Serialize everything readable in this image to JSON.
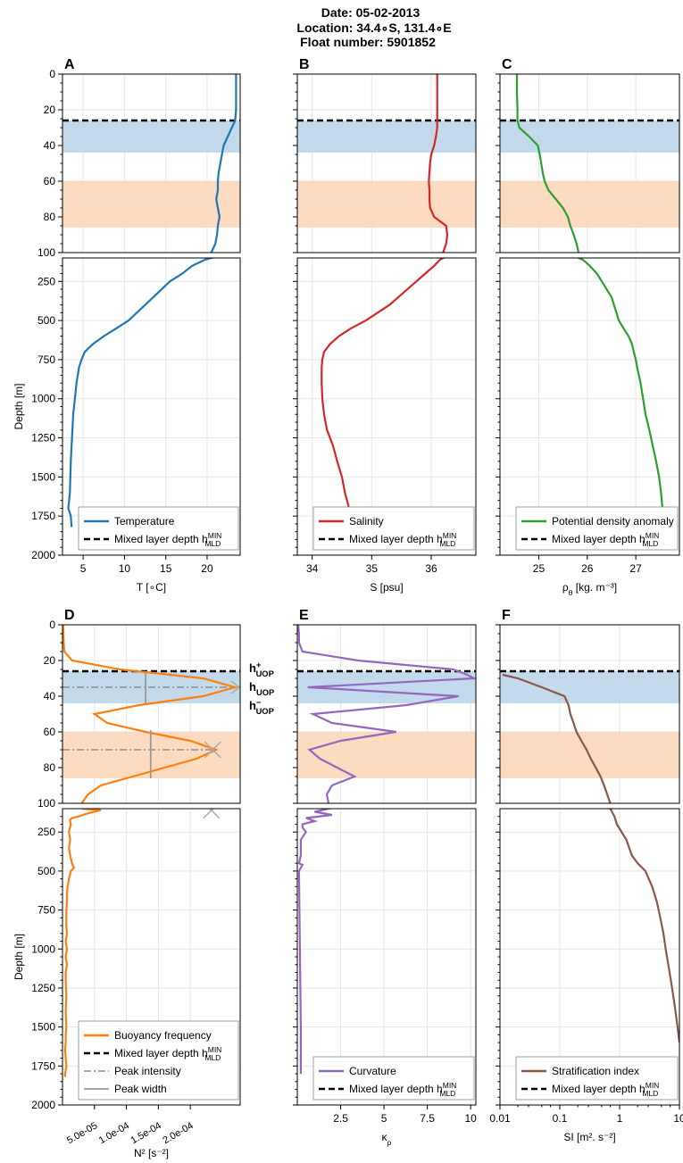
{
  "header": {
    "date": "Date: 05-02-2013",
    "location": "Location: 34.4∘S, 131.4∘E",
    "float": "Float number: 5901852"
  },
  "colors": {
    "temperature": "#1f77b4",
    "salinity": "#d62728",
    "density": "#2ca02c",
    "buoyancy": "#ff7f0e",
    "curvature": "#9467bd",
    "stratification": "#8c564b",
    "mld": "#000000",
    "band_blue": "#b9d3e9",
    "band_orange": "#fbd5b5",
    "peak": "#999999"
  },
  "chart_data": [
    {
      "id": "A",
      "type": "line",
      "panel_label": "A",
      "xlabel": "T [∘C]",
      "ylabel": "Depth [m]",
      "xlim": [
        2.5,
        24
      ],
      "xticks": [
        "5",
        "10",
        "15",
        "20"
      ],
      "xtick_values": [
        5,
        10,
        15,
        20
      ],
      "xscale": "linear",
      "legend": [
        "Temperature",
        "Mixed layer depth h"
      ],
      "series": [
        {
          "name": "Temperature",
          "y": [
            0,
            10,
            20,
            26,
            30,
            35,
            40,
            45,
            50,
            55,
            60,
            65,
            70,
            75,
            80,
            85,
            90,
            95,
            100,
            110,
            130,
            150,
            200,
            250,
            300,
            350,
            400,
            450,
            500,
            550,
            600,
            650,
            700,
            750,
            800,
            900,
            1000,
            1100,
            1200,
            1300,
            1400,
            1500,
            1600,
            1700,
            1750,
            1820
          ],
          "x": [
            23.5,
            23.5,
            23.5,
            23.4,
            23.0,
            22.5,
            22.0,
            21.8,
            21.6,
            21.4,
            21.3,
            21.3,
            21.1,
            21.3,
            21.5,
            21.3,
            21.2,
            21.0,
            20.5,
            19.8,
            19.0,
            18.2,
            17.0,
            15.5,
            14.5,
            13.5,
            12.5,
            11.5,
            10.5,
            9.0,
            7.5,
            6.2,
            5.2,
            4.8,
            4.5,
            4.2,
            4.0,
            3.8,
            3.7,
            3.6,
            3.5,
            3.45,
            3.4,
            3.2,
            3.5,
            3.6
          ]
        }
      ],
      "mld": 26,
      "bands": [
        [
          26,
          44
        ],
        [
          60,
          86
        ]
      ]
    },
    {
      "id": "B",
      "type": "line",
      "panel_label": "B",
      "xlabel": "S [psu]",
      "ylabel": "",
      "xlim": [
        33.75,
        36.75
      ],
      "xticks": [
        "34",
        "35",
        "36"
      ],
      "xtick_values": [
        34,
        35,
        36
      ],
      "xscale": "linear",
      "legend": [
        "Salinity",
        "Mixed layer depth h"
      ],
      "series": [
        {
          "name": "Salinity",
          "y": [
            0,
            10,
            20,
            26,
            30,
            35,
            40,
            45,
            50,
            55,
            60,
            65,
            70,
            75,
            80,
            85,
            90,
            95,
            100,
            110,
            130,
            150,
            200,
            250,
            300,
            350,
            400,
            450,
            500,
            550,
            600,
            650,
            700,
            750,
            800,
            900,
            1000,
            1100,
            1200,
            1300,
            1400,
            1500,
            1600,
            1700,
            1750
          ],
          "x": [
            36.1,
            36.1,
            36.1,
            36.1,
            36.1,
            36.08,
            36.05,
            36.0,
            35.98,
            35.97,
            35.96,
            35.97,
            35.97,
            35.98,
            36.05,
            36.25,
            36.27,
            36.25,
            36.2,
            36.15,
            36.1,
            36.05,
            35.9,
            35.75,
            35.6,
            35.45,
            35.3,
            35.1,
            34.9,
            34.65,
            34.45,
            34.3,
            34.2,
            34.17,
            34.16,
            34.16,
            34.17,
            34.2,
            34.25,
            34.35,
            34.42,
            34.5,
            34.55,
            34.62,
            34.65
          ]
        }
      ],
      "mld": 26,
      "bands": [
        [
          26,
          44
        ],
        [
          60,
          86
        ]
      ]
    },
    {
      "id": "C",
      "type": "line",
      "panel_label": "C",
      "xlabel": "ρθ [kg. m⁻³]",
      "ylabel": "",
      "xlim": [
        24.2,
        27.9
      ],
      "xticks": [
        "25",
        "26",
        "27"
      ],
      "xtick_values": [
        25,
        26,
        27
      ],
      "xscale": "linear",
      "legend": [
        "Potential density anomaly",
        "Mixed layer depth h"
      ],
      "series": [
        {
          "name": "Potential density anomaly",
          "y": [
            0,
            10,
            20,
            26,
            30,
            35,
            40,
            45,
            50,
            55,
            60,
            65,
            70,
            75,
            80,
            85,
            90,
            95,
            100,
            110,
            130,
            150,
            200,
            250,
            300,
            350,
            400,
            450,
            500,
            550,
            600,
            650,
            700,
            750,
            800,
            900,
            1000,
            1100,
            1200,
            1300,
            1400,
            1500,
            1600,
            1700,
            1750
          ],
          "x": [
            24.55,
            24.55,
            24.56,
            24.56,
            24.6,
            24.8,
            24.98,
            25.02,
            25.05,
            25.08,
            25.12,
            25.2,
            25.35,
            25.5,
            25.6,
            25.65,
            25.72,
            25.78,
            25.82,
            25.9,
            25.98,
            26.05,
            26.2,
            26.3,
            26.4,
            26.5,
            26.55,
            26.6,
            26.65,
            26.75,
            26.85,
            26.92,
            26.96,
            27.0,
            27.03,
            27.1,
            27.15,
            27.2,
            27.28,
            27.35,
            27.42,
            27.48,
            27.52,
            27.55,
            27.57
          ]
        }
      ],
      "mld": 26,
      "bands": [
        [
          26,
          44
        ],
        [
          60,
          86
        ]
      ]
    },
    {
      "id": "D",
      "type": "line",
      "panel_label": "D",
      "xlabel": "N² [s⁻²]",
      "ylabel": "Depth [m]",
      "xlim": [
        0.0,
        0.000278
      ],
      "xticks": [
        "5.0e-05",
        "1.0e-04",
        "1.5e-04",
        "2.0e-04"
      ],
      "xtick_values": [
        5e-05,
        0.0001,
        0.00015,
        0.0002
      ],
      "xscale": "linear",
      "legend": [
        "Buoyancy frequency",
        "Mixed layer depth h",
        "Peak intensity",
        "Peak width"
      ],
      "series": [
        {
          "name": "Buoyancy frequency",
          "y": [
            0,
            10,
            15,
            20,
            25,
            30,
            35,
            40,
            45,
            50,
            55,
            60,
            65,
            70,
            75,
            80,
            85,
            90,
            95,
            100,
            110,
            130,
            150,
            160,
            170,
            180,
            200,
            250,
            300,
            350,
            400,
            450,
            480,
            500,
            550,
            600,
            650,
            700,
            750,
            800,
            850,
            900,
            950,
            1000,
            1050,
            1100,
            1150,
            1200,
            1300,
            1400,
            1500,
            1550,
            1600,
            1650,
            1700,
            1750,
            1800,
            1820
          ],
          "x": [
            1e-06,
            2e-06,
            3e-06,
            1.5e-05,
            9e-05,
            0.00022,
            0.00027,
            0.00022,
            0.00012,
            5e-05,
            7e-05,
            0.00013,
            0.0002,
            0.00024,
            0.00021,
            0.00016,
            0.00011,
            6e-05,
            4e-05,
            3e-05,
            6e-05,
            4e-05,
            2.5e-05,
            1.5e-05,
            1.2e-05,
            1.2e-05,
            1.3e-05,
            1e-05,
            1.2e-05,
            1e-05,
            1.2e-05,
            1.5e-05,
            1.8e-05,
            1.3e-05,
            1e-05,
            8e-06,
            7e-06,
            7e-06,
            6e-06,
            6e-06,
            6e-06,
            7e-06,
            5e-06,
            7e-06,
            5e-06,
            7e-06,
            5e-06,
            5e-06,
            6e-06,
            5e-06,
            6e-06,
            5e-06,
            5e-06,
            4e-06,
            5e-06,
            6e-06,
            4e-06,
            4e-06
          ]
        }
      ],
      "mld": 26,
      "bands": [
        [
          26,
          44
        ],
        [
          60,
          86
        ]
      ],
      "peaks": [
        {
          "depth": 35,
          "intensity": 0.000266,
          "width_x": 0.00013,
          "width_y": [
            27,
            44
          ]
        },
        {
          "depth": 70,
          "intensity": 0.000235,
          "width_x": 0.000138,
          "width_y": [
            59,
            86
          ]
        }
      ],
      "peak_markers": [
        {
          "y": 70,
          "x": 0.000235
        },
        {
          "y": 110,
          "x": 0.000233
        }
      ],
      "annotations": [
        {
          "main": "h",
          "sup": "+",
          "sub": "UOP",
          "depth": 26
        },
        {
          "main": "h",
          "sup": "",
          "sub": "UOP",
          "depth": 35
        },
        {
          "main": "h",
          "sup": "−",
          "sub": "UOP",
          "depth": 44
        }
      ]
    },
    {
      "id": "E",
      "type": "line",
      "panel_label": "E",
      "xlabel": "κρ",
      "ylabel": "",
      "xlim": [
        0.0,
        10.3
      ],
      "xticks": [
        "2.5",
        "5",
        "7.5",
        "10"
      ],
      "xtick_values": [
        2.5,
        5,
        7.5,
        10
      ],
      "xscale": "linear",
      "legend": [
        "Curvature",
        "Mixed layer depth h"
      ],
      "series": [
        {
          "name": "Curvature",
          "y": [
            0,
            5,
            10,
            15,
            20,
            25,
            28,
            30,
            35,
            40,
            45,
            50,
            55,
            60,
            65,
            70,
            75,
            80,
            85,
            90,
            95,
            100,
            120,
            140,
            160,
            180,
            200,
            220,
            250,
            300,
            400,
            450,
            460,
            500,
            1000,
            1500,
            1800
          ],
          "x": [
            0.05,
            0.1,
            0.1,
            0.3,
            3.5,
            9.0,
            9.8,
            10.2,
            0.6,
            9.3,
            6.3,
            0.9,
            2.0,
            5.7,
            2.5,
            0.7,
            1.3,
            2.3,
            3.3,
            2.0,
            1.7,
            1.8,
            1.0,
            2.0,
            0.5,
            1.0,
            0.3,
            0.3,
            0.5,
            0.2,
            0.2,
            0.1,
            0.3,
            0.1,
            0.15,
            0.2,
            0.2
          ]
        }
      ],
      "mld": 26,
      "bands": [
        [
          26,
          44
        ],
        [
          60,
          86
        ]
      ]
    },
    {
      "id": "F",
      "type": "line",
      "panel_label": "F",
      "xlabel": "SI [m². s⁻²]",
      "ylabel": "",
      "xlim": [
        0.01,
        10
      ],
      "xticks": [
        "0.01",
        "0.1",
        "1",
        "10"
      ],
      "xtick_values": [
        0.01,
        0.1,
        1,
        10
      ],
      "xscale": "log",
      "legend": [
        "Stratification index",
        "Mixed layer depth h"
      ],
      "series": [
        {
          "name": "Stratification index",
          "y": [
            28,
            30,
            35,
            40,
            45,
            50,
            55,
            60,
            65,
            70,
            75,
            80,
            85,
            90,
            95,
            100,
            150,
            200,
            300,
            400,
            450,
            500,
            600,
            700,
            800,
            900,
            1000,
            1100,
            1200,
            1300,
            1400,
            1500,
            1600
          ],
          "x": [
            0.011,
            0.02,
            0.05,
            0.12,
            0.14,
            0.15,
            0.17,
            0.19,
            0.23,
            0.28,
            0.33,
            0.4,
            0.48,
            0.55,
            0.62,
            0.7,
            0.82,
            0.9,
            1.3,
            1.6,
            2.0,
            2.7,
            3.5,
            4.2,
            4.8,
            5.4,
            5.9,
            6.5,
            7.2,
            7.9,
            8.6,
            9.3,
            10.0
          ]
        }
      ],
      "mld": 26,
      "bands": [
        [
          26,
          44
        ],
        [
          60,
          86
        ]
      ]
    }
  ],
  "axis_ticks": {
    "upper_y": [
      "0",
      "20",
      "40",
      "60",
      "80",
      "100"
    ],
    "upper_y_values": [
      0,
      20,
      40,
      60,
      80,
      100
    ],
    "lower_y": [
      "250",
      "500",
      "750",
      "1000",
      "1250",
      "1500",
      "1750",
      "2000"
    ],
    "lower_y_values": [
      250,
      500,
      750,
      1000,
      1250,
      1500,
      1750,
      2000
    ],
    "mld_sup": "MIN",
    "mld_sub": "MLD"
  }
}
